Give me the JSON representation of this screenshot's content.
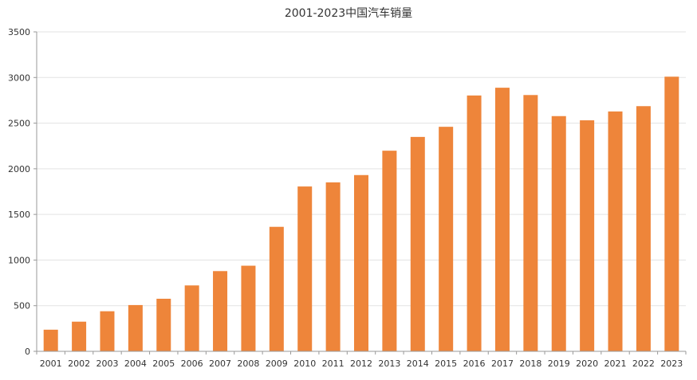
{
  "colors": {
    "bar": "#ee853a",
    "grid": "#e3e3e3",
    "axis": "#999999",
    "text": "#333333"
  },
  "chart_data": {
    "type": "bar",
    "title": "2001-2023中国汽车销量",
    "xlabel": "",
    "ylabel": "",
    "ylim": [
      0,
      3500
    ],
    "yticks": [
      "0",
      "500",
      "1000",
      "1500",
      "2000",
      "2500",
      "3000",
      "3500"
    ],
    "grid": true,
    "legend": "none",
    "categories": [
      "2001",
      "2002",
      "2003",
      "2004",
      "2005",
      "2006",
      "2007",
      "2008",
      "2009",
      "2010",
      "2011",
      "2012",
      "2013",
      "2014",
      "2015",
      "2016",
      "2017",
      "2018",
      "2019",
      "2020",
      "2021",
      "2022",
      "2023"
    ],
    "values": [
      237,
      325,
      439,
      507,
      576,
      722,
      879,
      938,
      1364,
      1806,
      1851,
      1931,
      2198,
      2349,
      2460,
      2803,
      2888,
      2808,
      2577,
      2531,
      2628,
      2686,
      3009
    ]
  }
}
